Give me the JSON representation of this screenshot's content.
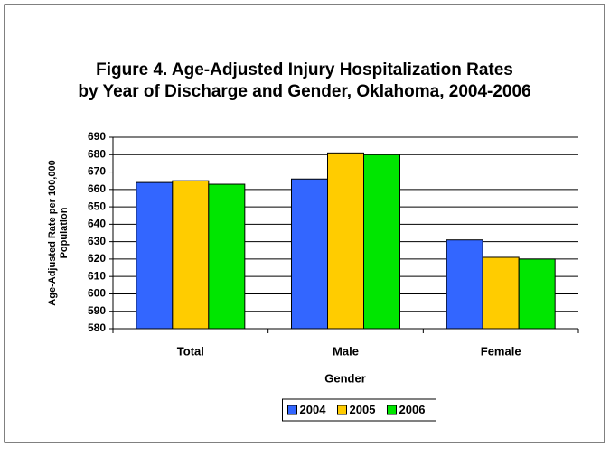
{
  "chart_data": {
    "type": "bar",
    "title": [
      "Figure 4. Age-Adjusted Injury Hospitalization Rates",
      "by Year of Discharge and Gender, Oklahoma, 2004-2006"
    ],
    "y_label": [
      "Age-Adjusted Rate per 100,000",
      "Population"
    ],
    "x_label": "Gender",
    "categories": [
      "Total",
      "Male",
      "Female"
    ],
    "series": [
      {
        "name": "2004",
        "color": "#3366ff",
        "values": [
          664,
          666,
          631
        ]
      },
      {
        "name": "2005",
        "color": "#ffcc00",
        "values": [
          665,
          681,
          621
        ]
      },
      {
        "name": "2006",
        "color": "#00e600",
        "values": [
          663,
          680,
          620
        ]
      }
    ],
    "ylim": [
      580,
      690
    ],
    "yticks": [
      580,
      590,
      600,
      610,
      620,
      630,
      640,
      650,
      660,
      670,
      680,
      690
    ],
    "grid": true,
    "legend": "bottom"
  }
}
